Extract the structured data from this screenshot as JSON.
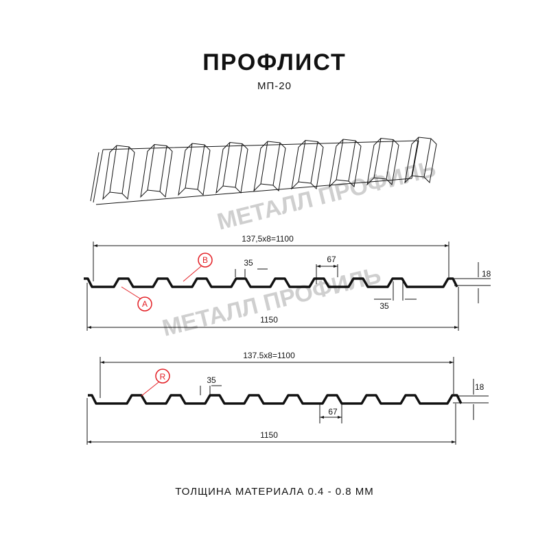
{
  "title": "ПРОФЛИСТ",
  "model": "МП-20",
  "watermark": "МЕТАЛЛ ПРОФИЛЬ",
  "footer": "ТОЛЩИНА МАТЕРИАЛА 0.4 - 0.8 ММ",
  "profile_a": {
    "pitch": "137,5x8=1100",
    "width": "1150",
    "rib_top": "35",
    "rib_bottom": "35",
    "rib_base": "67",
    "height": "18",
    "marker_a": "A",
    "marker_b": "B"
  },
  "profile_r": {
    "pitch": "137.5x8=1100",
    "width": "1150",
    "rib_top": "35",
    "rib_base": "67",
    "height": "18",
    "marker_r": "R"
  },
  "colors": {
    "line": "#111111",
    "marker": "#e31e24",
    "watermark": "#d9d9d9"
  }
}
